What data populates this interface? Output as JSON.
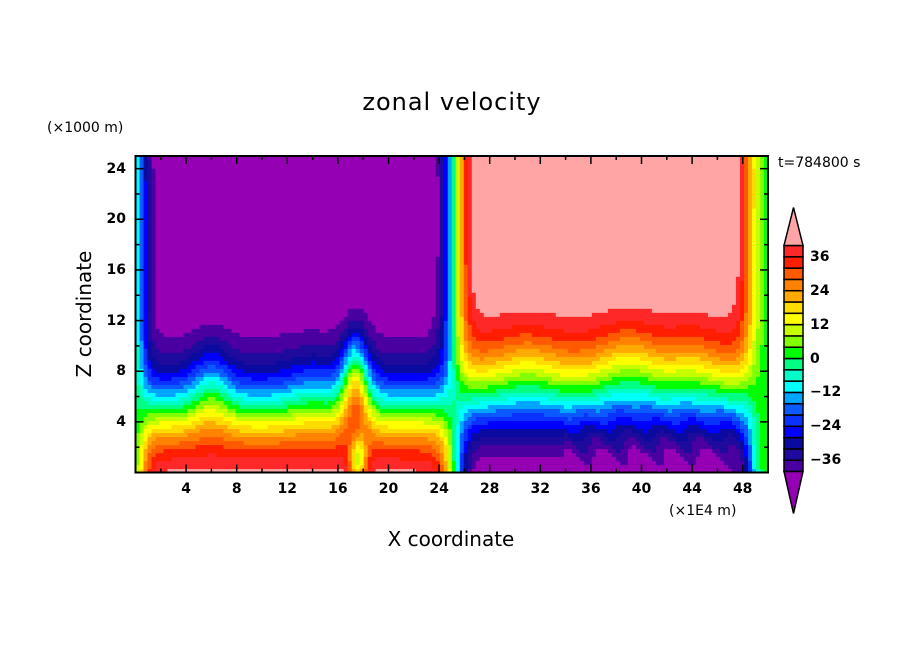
{
  "chart_data": {
    "type": "heatmap",
    "subtype": "filled-contour",
    "title": "zonal velocity",
    "xlabel": "X coordinate",
    "ylabel": "Z coordinate",
    "x_unit_label": "(×1E4 m)",
    "z_unit_label": "(×1000 m)",
    "time_label": "t=784800 s",
    "xlim": [
      0,
      50
    ],
    "ylim": [
      0,
      25
    ],
    "x_ticks": [
      4,
      8,
      12,
      16,
      20,
      24,
      28,
      32,
      36,
      40,
      44,
      48
    ],
    "x_tick_labels": [
      "4",
      "8",
      "12",
      "16",
      "20",
      "24",
      "28",
      "32",
      "36",
      "40",
      "44",
      "48"
    ],
    "y_ticks": [
      4,
      8,
      12,
      16,
      20,
      24
    ],
    "y_tick_labels": [
      "4",
      "8",
      "12",
      "16",
      "20",
      "24"
    ],
    "colorbar": {
      "levels": [
        -40,
        -36,
        -32,
        -28,
        -24,
        -20,
        -16,
        -12,
        -8,
        -4,
        0,
        4,
        8,
        12,
        16,
        20,
        24,
        28,
        32,
        36,
        40
      ],
      "tick_values": [
        36,
        24,
        12,
        0,
        -12,
        -24,
        -36
      ],
      "tick_labels": [
        "36",
        "24",
        "12",
        "0",
        "−12",
        "−24",
        "−36"
      ],
      "colors": [
        "#4a00a0",
        "#1e0a9c",
        "#0a0aa0",
        "#0000ff",
        "#0a32ff",
        "#0a5aff",
        "#00a5ff",
        "#00ffff",
        "#00ffc8",
        "#00ff82",
        "#00ff00",
        "#82ff00",
        "#c8ff00",
        "#ffff00",
        "#ffdc00",
        "#ffaa00",
        "#ff8200",
        "#ff5a00",
        "#ff1e00",
        "#ff2828"
      ],
      "over_color": "#ffa5a5",
      "under_color": "#9600b4",
      "extend": "both"
    },
    "field_description_values": {
      "western_jet_core_max": -40,
      "eastern_jet_core_max": 40,
      "surface_west_max": 40,
      "surface_east_min": -40
    }
  }
}
